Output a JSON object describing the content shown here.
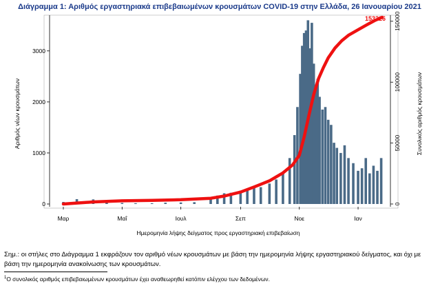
{
  "chart_data": {
    "type": "bar",
    "title": "Διάγραμμα 1: Αριθμός εργαστηριακά επιβεβαιωμένων κρουσμάτων COVID-19 στην Ελλάδα, 26 Ιανουαρίου 2021",
    "xlabel": "Ημερομηνία λήψης δείγματος προς εργαστηριακή επιβεβαίωση",
    "ylabel": "Αριθμός νέων κρουσμάτων",
    "y2label": "Συνολικός αριθμός κρουσμάτων",
    "x_ticks": [
      "Μαρ",
      "Μαΐ",
      "Ιουλ",
      "Σεπ",
      "Νοε",
      "Ιαν"
    ],
    "ylim": [
      0,
      3700
    ],
    "y_ticks": [
      0,
      1000,
      2000,
      3000
    ],
    "y2lim": [
      0,
      155000
    ],
    "y2_ticks": [
      0,
      50000,
      100000,
      150000
    ],
    "cumulative_final_label": "153226",
    "bar_color": "#4a6a87",
    "line_color": "#ee1111",
    "series": [
      {
        "type": "bar",
        "axis": "left",
        "x": [
          "2020-03-01",
          "2020-03-15",
          "2020-04-01",
          "2020-04-15",
          "2020-05-01",
          "2020-05-15",
          "2020-06-01",
          "2020-06-15",
          "2020-07-01",
          "2020-07-15",
          "2020-08-01",
          "2020-08-08",
          "2020-08-15",
          "2020-08-22",
          "2020-09-01",
          "2020-09-08",
          "2020-09-15",
          "2020-09-22",
          "2020-10-01",
          "2020-10-08",
          "2020-10-15",
          "2020-10-22",
          "2020-10-27",
          "2020-10-30",
          "2020-11-02",
          "2020-11-04",
          "2020-11-06",
          "2020-11-08",
          "2020-11-10",
          "2020-11-12",
          "2020-11-14",
          "2020-11-16",
          "2020-11-18",
          "2020-11-20",
          "2020-11-22",
          "2020-11-25",
          "2020-11-28",
          "2020-12-01",
          "2020-12-04",
          "2020-12-07",
          "2020-12-10",
          "2020-12-14",
          "2020-12-18",
          "2020-12-22",
          "2020-12-27",
          "2021-01-01",
          "2021-01-05",
          "2021-01-09",
          "2021-01-13",
          "2021-01-17",
          "2021-01-21",
          "2021-01-25"
        ],
        "values": [
          40,
          95,
          90,
          55,
          20,
          15,
          15,
          25,
          30,
          35,
          110,
          165,
          210,
          220,
          260,
          290,
          310,
          330,
          400,
          480,
          620,
          900,
          1350,
          1900,
          2550,
          3100,
          3350,
          3400,
          3600,
          3050,
          3550,
          2750,
          2300,
          2450,
          2100,
          1850,
          1900,
          1650,
          1550,
          1200,
          1100,
          1000,
          1150,
          900,
          800,
          650,
          700,
          900,
          600,
          750,
          650,
          900
        ]
      },
      {
        "type": "line",
        "axis": "right",
        "x": [
          "2020-03-01",
          "2020-04-01",
          "2020-05-01",
          "2020-06-01",
          "2020-07-01",
          "2020-08-01",
          "2020-08-15",
          "2020-09-01",
          "2020-09-15",
          "2020-10-01",
          "2020-10-15",
          "2020-10-25",
          "2020-11-01",
          "2020-11-06",
          "2020-11-11",
          "2020-11-16",
          "2020-11-21",
          "2020-11-26",
          "2020-12-01",
          "2020-12-08",
          "2020-12-15",
          "2020-12-22",
          "2021-01-01",
          "2021-01-10",
          "2021-01-18",
          "2021-01-26"
        ],
        "values": [
          0,
          1700,
          2600,
          3000,
          3500,
          4700,
          6500,
          9800,
          14000,
          19000,
          25500,
          32000,
          40000,
          55000,
          73000,
          90000,
          103000,
          112000,
          120000,
          128000,
          134000,
          138500,
          143000,
          147000,
          150500,
          153226
        ]
      }
    ]
  },
  "notes": {
    "main": "Σημ.: οι στήλες στο Διάγραμμα 1 εκφράζουν τον αριθμό νέων κρουσμάτων με βάση την ημερομηνία λήψης εργαστηριακού δείγματος, και όχι με βάση την ημερομηνία ανακοίνωσης των κρουσμάτων.",
    "footnote_marker": "1",
    "footnote": "Ο συνολικός αριθμός επιβεβαιωμένων κρουσμάτων έχει αναθεωρηθεί κατόπιν ελέγχου των δεδομένων."
  }
}
